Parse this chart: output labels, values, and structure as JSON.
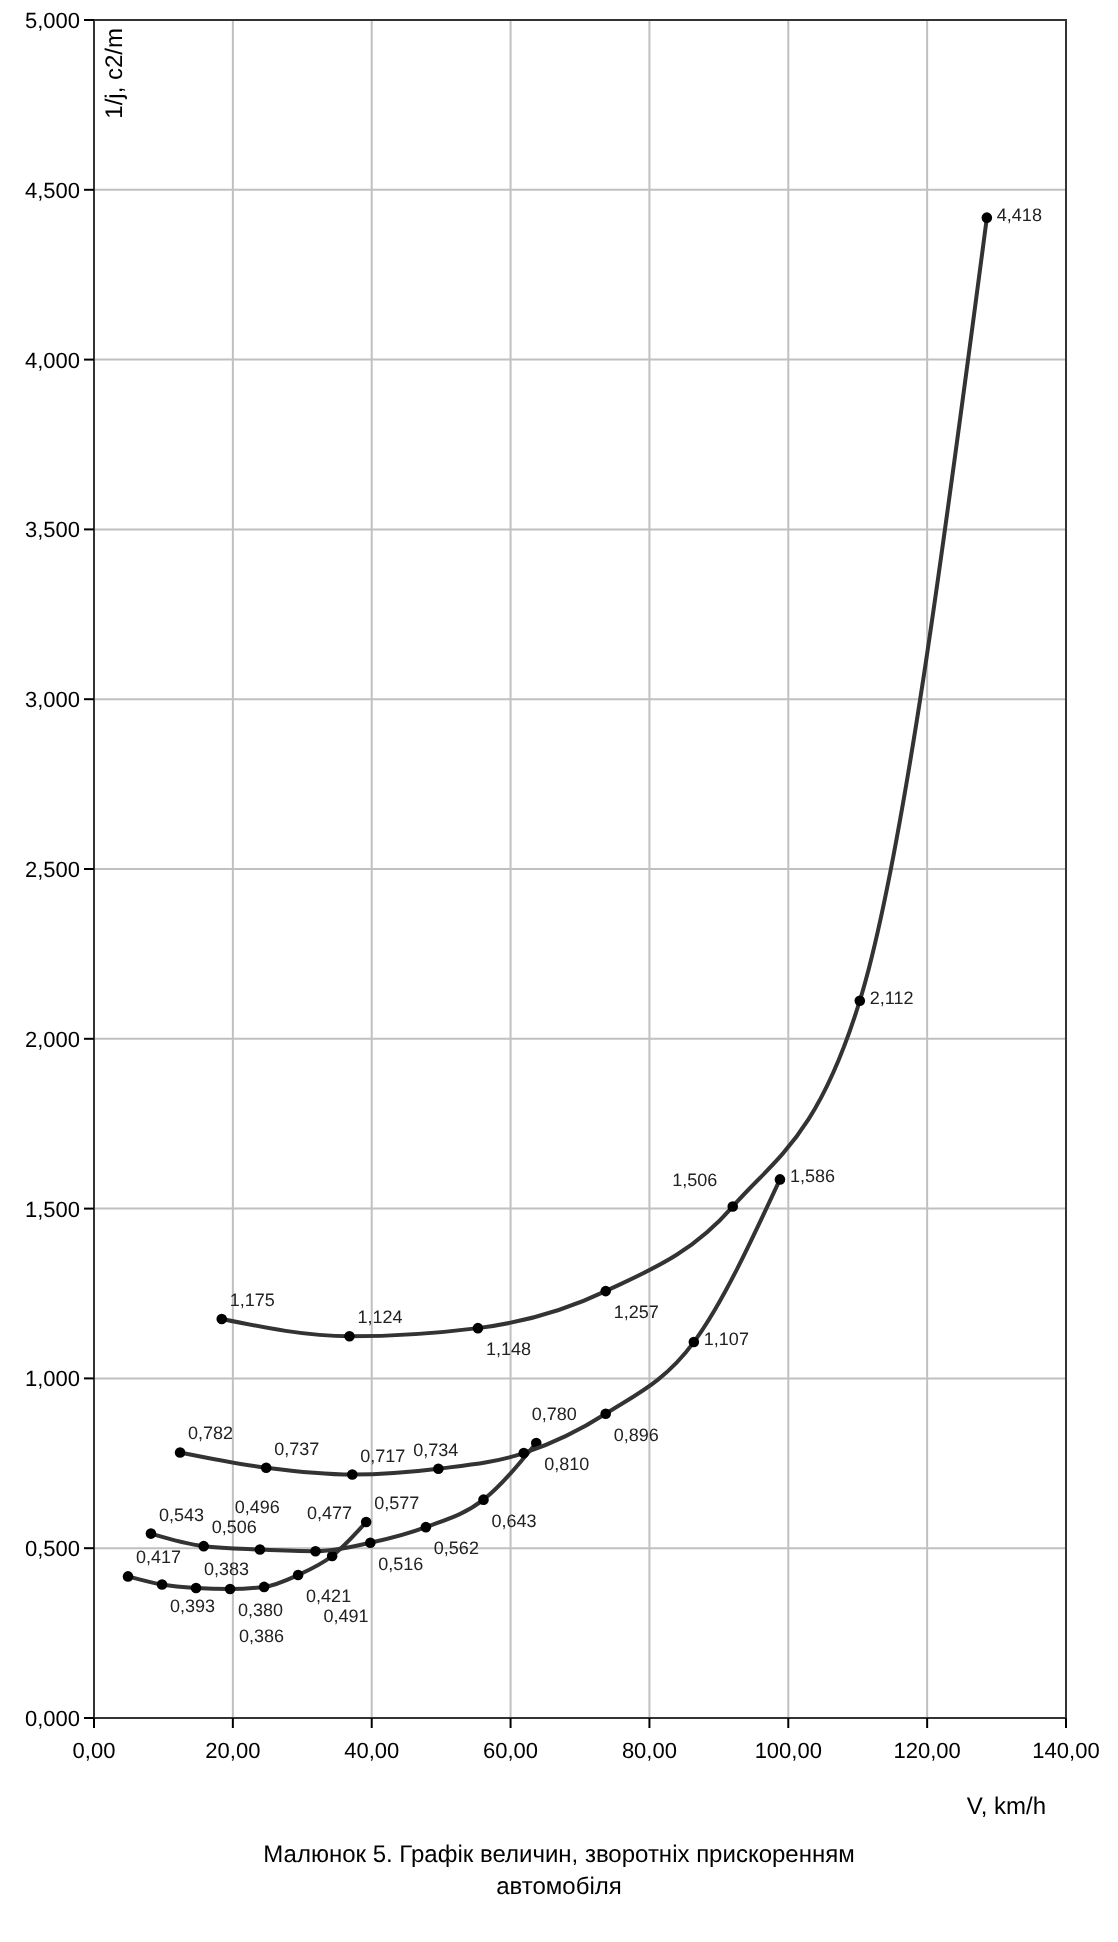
{
  "chart_data": {
    "type": "line",
    "xlabel": "V, km/h",
    "ylabel": "1/j, с2/m",
    "annotations": [
      "Малюнок 5. Графік величин, зворотніх прискоренням автомобіля"
    ],
    "xlim": [
      0,
      140
    ],
    "xticks": [
      {
        "value": 0,
        "label": "0,00"
      },
      {
        "value": 20,
        "label": "20,00"
      },
      {
        "value": 40,
        "label": "40,00"
      },
      {
        "value": 60,
        "label": "60,00"
      },
      {
        "value": 80,
        "label": "80,00"
      },
      {
        "value": 100,
        "label": "100,00"
      },
      {
        "value": 120,
        "label": "120,00"
      },
      {
        "value": 140,
        "label": "140,00"
      }
    ],
    "ylim": [
      0,
      5
    ],
    "yticks": [
      {
        "value": 0,
        "label": "0,000"
      },
      {
        "value": 0.5,
        "label": "0,500"
      },
      {
        "value": 1,
        "label": "1,000"
      },
      {
        "value": 1.5,
        "label": "1,500"
      },
      {
        "value": 2,
        "label": "2,000"
      },
      {
        "value": 2.5,
        "label": "2,500"
      },
      {
        "value": 3,
        "label": "3,000"
      },
      {
        "value": 3.5,
        "label": "3,500"
      },
      {
        "value": 4,
        "label": "4,000"
      },
      {
        "value": 4.5,
        "label": "4,500"
      },
      {
        "value": 5,
        "label": "5,000"
      }
    ],
    "grid": true,
    "marker": "circle",
    "series": [
      {
        "color": "#333333",
        "x": [
          4.9,
          9.8,
          14.7,
          19.6,
          24.5,
          29.4,
          34.3,
          39.2
        ],
        "values": [
          0.417,
          0.393,
          0.383,
          0.38,
          0.386,
          0.421,
          0.477,
          0.577
        ],
        "value_labels": [
          "0,417",
          "0,393",
          "0,383",
          "0,380",
          "0,386",
          "0,421",
          "0,477",
          "0,577"
        ]
      },
      {
        "color": "#333333",
        "x": [
          8.2,
          15.8,
          23.9,
          31.9,
          39.8,
          47.8,
          56.1,
          63.7
        ],
        "values": [
          0.543,
          0.506,
          0.496,
          0.491,
          0.516,
          0.562,
          0.643,
          0.81
        ],
        "value_labels": [
          "0,543",
          "0,506",
          "0,496",
          "0,491",
          "0,516",
          "0,562",
          "0,643",
          "0,810"
        ]
      },
      {
        "color": "#333333",
        "x": [
          12.4,
          24.8,
          37.2,
          49.6,
          61.9,
          73.7,
          86.4,
          98.8
        ],
        "values": [
          0.782,
          0.737,
          0.717,
          0.734,
          0.78,
          0.896,
          1.107,
          1.586
        ],
        "value_labels": [
          "0,782",
          "0,737",
          "0,717",
          "0,734",
          "0,780",
          "0,896",
          "1,107",
          "1,586"
        ]
      },
      {
        "color": "#333333",
        "x": [
          18.4,
          36.8,
          55.3,
          73.7,
          92.0,
          110.3,
          128.6
        ],
        "values": [
          1.175,
          1.124,
          1.148,
          1.257,
          1.506,
          2.112,
          4.418
        ],
        "value_labels": [
          "1,175",
          "1,124",
          "1,148",
          "1,257",
          "1,506",
          "2,112",
          "4,418"
        ]
      }
    ]
  }
}
